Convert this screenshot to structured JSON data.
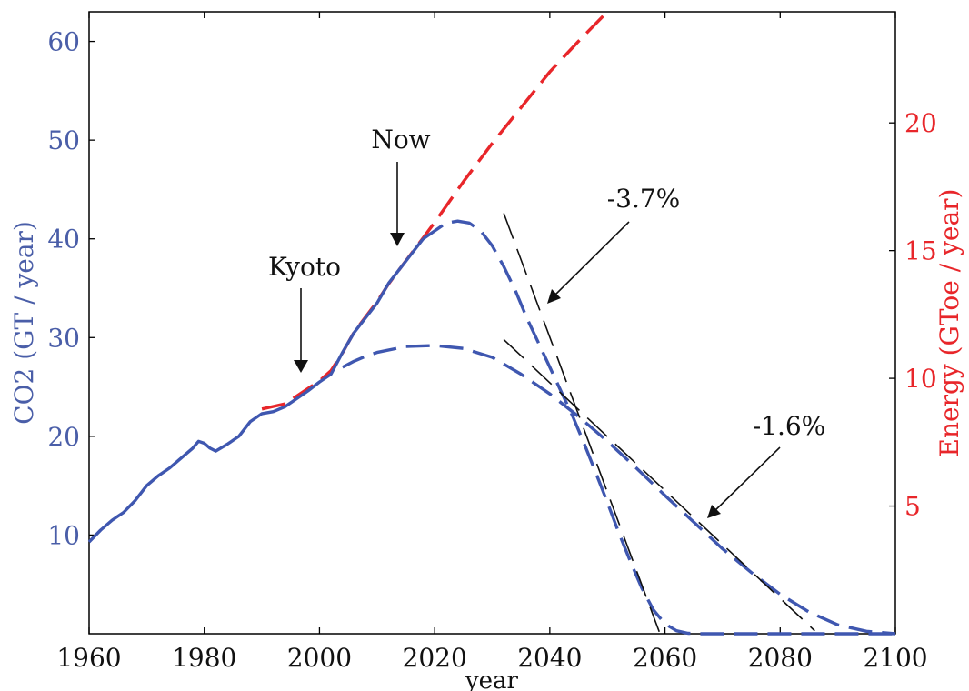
{
  "chart_data": {
    "type": "line",
    "xlabel": "year",
    "ylabel_left": "CO2 (GT / year)",
    "ylabel_right": "Energy (GToe / year)",
    "xlim": [
      1960,
      2100
    ],
    "ylim_left": [
      0,
      63
    ],
    "ylim_right": [
      0,
      24.35
    ],
    "x_ticks": [
      1960,
      1980,
      2000,
      2020,
      2040,
      2060,
      2080,
      2100
    ],
    "y_ticks_left": [
      10,
      20,
      30,
      40,
      50,
      60
    ],
    "y_ticks_right": [
      5,
      10,
      15,
      20
    ],
    "colors": {
      "co2": "#3f57b0",
      "energy": "#e8262a",
      "tangent": "#111111"
    },
    "series": [
      {
        "name": "CO2 historical",
        "axis": "left",
        "style": "solid",
        "color": "#3f57b0",
        "x": [
          1960,
          1962,
          1964,
          1966,
          1968,
          1970,
          1972,
          1974,
          1976,
          1978,
          1979,
          1980,
          1981,
          1982,
          1984,
          1986,
          1988,
          1990,
          1992,
          1994,
          1996,
          1998,
          2000,
          2002,
          2004,
          2006,
          2008,
          2010,
          2012,
          2014,
          2016,
          2018
        ],
        "y": [
          9.3,
          10.5,
          11.5,
          12.3,
          13.5,
          15.0,
          16.0,
          16.8,
          17.8,
          18.8,
          19.5,
          19.3,
          18.8,
          18.5,
          19.2,
          20.0,
          21.5,
          22.3,
          22.5,
          23.0,
          23.8,
          24.6,
          25.5,
          26.3,
          28.5,
          30.5,
          32.0,
          33.5,
          35.5,
          37.0,
          38.5,
          40.0
        ]
      },
      {
        "name": "Energy historical and projection",
        "axis": "right",
        "style": "dashed",
        "color": "#e8262a",
        "x": [
          1990,
          1992,
          1994,
          1996,
          1998,
          2000,
          2002,
          2004,
          2006,
          2008,
          2010,
          2012,
          2014,
          2016,
          2018,
          2020,
          2025,
          2030,
          2035,
          2040,
          2045,
          2050
        ],
        "y": [
          8.8,
          8.9,
          9.0,
          9.3,
          9.6,
          9.9,
          10.3,
          11.0,
          11.8,
          12.4,
          13.0,
          13.7,
          14.3,
          14.9,
          15.5,
          16.1,
          17.7,
          19.2,
          20.6,
          22.0,
          23.2,
          24.35
        ]
      },
      {
        "name": "CO2 scenario -3.7%",
        "axis": "left",
        "style": "dashed",
        "color": "#3f57b0",
        "x": [
          2018,
          2020,
          2022,
          2024,
          2026,
          2028,
          2030,
          2032,
          2034,
          2036,
          2038,
          2040,
          2042,
          2044,
          2046,
          2048,
          2050,
          2052,
          2054,
          2056,
          2058,
          2060,
          2062,
          2064,
          2066,
          2068,
          2070,
          2080,
          2090,
          2100
        ],
        "y": [
          40.0,
          40.8,
          41.6,
          41.8,
          41.6,
          40.8,
          39.3,
          37.2,
          34.8,
          32.0,
          29.5,
          27.0,
          24.5,
          22.0,
          19.2,
          16.3,
          13.3,
          10.2,
          7.3,
          4.6,
          2.4,
          1.0,
          0.3,
          0.05,
          0.0,
          0.0,
          0.0,
          0.0,
          0.0,
          0.0
        ]
      },
      {
        "name": "CO2 scenario -1.6%",
        "axis": "left",
        "style": "dashed",
        "color": "#3f57b0",
        "x": [
          2004,
          2006,
          2008,
          2010,
          2015,
          2020,
          2025,
          2030,
          2035,
          2040,
          2045,
          2050,
          2055,
          2060,
          2065,
          2070,
          2075,
          2080,
          2085,
          2090,
          2095,
          2100
        ],
        "y": [
          27.0,
          27.6,
          28.1,
          28.5,
          29.1,
          29.2,
          28.9,
          28.0,
          26.3,
          24.3,
          22.0,
          19.5,
          16.8,
          14.0,
          11.3,
          8.6,
          6.2,
          4.0,
          2.2,
          0.9,
          0.25,
          0.0
        ]
      }
    ],
    "tangents": [
      {
        "x": [
          2032,
          2059
        ],
        "y": [
          42.6,
          0.2
        ]
      },
      {
        "x": [
          2032,
          2086
        ],
        "y": [
          29.8,
          0.3
        ]
      }
    ],
    "annotations": [
      {
        "text": "Kyoto",
        "x": 1997,
        "y": 27.5
      },
      {
        "text": "Now",
        "x": 2014,
        "y": 44.0
      },
      {
        "text": "-3.7%",
        "x": 2039,
        "y": 36.7
      },
      {
        "text": "-1.6%",
        "x": 2067,
        "y": 22.5
      }
    ]
  }
}
